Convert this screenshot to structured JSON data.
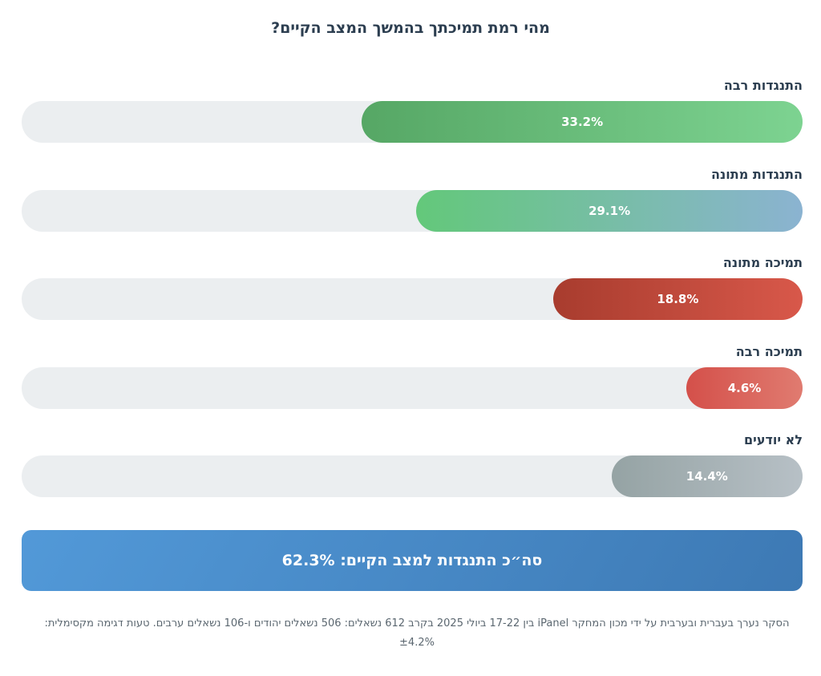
{
  "title": "מהי רמת תמיכתך בהמשך המצב הקיים?",
  "chart_data": {
    "type": "bar",
    "orientation": "horizontal",
    "title": "מהי רמת תמיכתך בהמשך המצב הקיים?",
    "categories": [
      "התנגדות רבה",
      "התנגדות מתונה",
      "תמיכה מתונה",
      "תמיכה רבה",
      "לא יודעים"
    ],
    "values": [
      33.2,
      29.1,
      18.8,
      4.6,
      14.4
    ],
    "value_labels": [
      "33.2%",
      "29.1%",
      "18.8%",
      "4.6%",
      "14.4%"
    ],
    "unit": "%",
    "xlim": [
      0,
      100
    ],
    "grid": false,
    "bar_colors": [
      [
        "#56a765",
        "#7dd391"
      ],
      [
        "#63c87a",
        "#8bb3d1"
      ],
      [
        "#a83c2e",
        "#d8584a"
      ],
      [
        "#d4504a",
        "#e07b70"
      ],
      [
        "#95a3a4",
        "#b7c0c6"
      ]
    ]
  },
  "total": {
    "label": "סה״כ התנגדות למצב הקיים: 62.3%"
  },
  "footnote": "הסקר נערך בעברית ובערבית על ידי מכון המחקר iPanel בין 17-22 ביולי 2025 בקרב 612 נשאלים: 506 נשאלים יהודים ו-106 נשאלים ערבים. טעות דגימה מקסימלית: ±4.2%",
  "colors": {
    "track": "#ebeef0",
    "text": "#2c3e50",
    "total_start": "#5299d8",
    "total_end": "#3d79b4"
  }
}
